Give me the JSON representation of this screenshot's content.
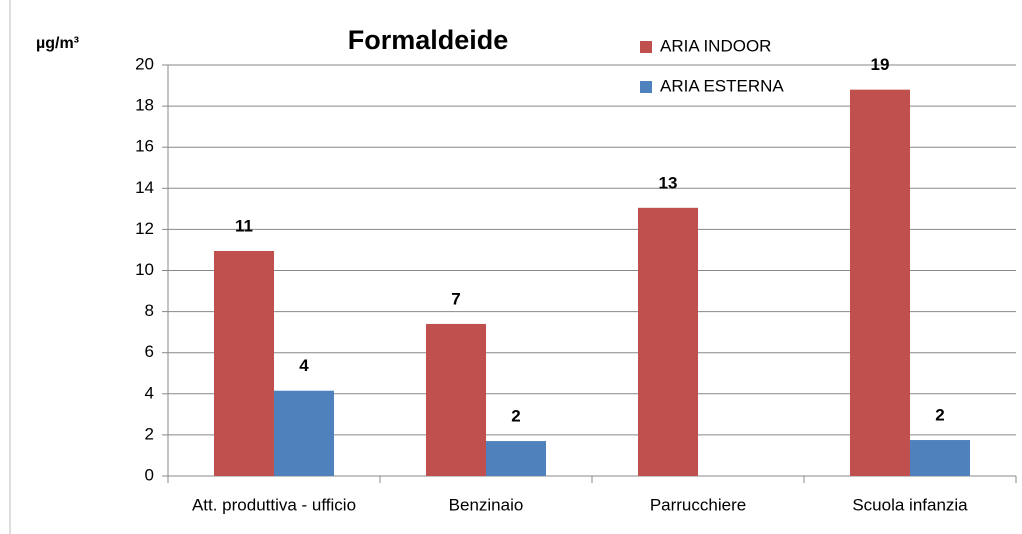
{
  "chart_data": {
    "type": "bar",
    "title": "Formaldeide",
    "y_label": "µg/m³",
    "categories": [
      "Att. produttiva - ufficio",
      "Benzinaio",
      "Parrucchiere",
      "Scuola infanzia"
    ],
    "series": [
      {
        "name": "ARIA INDOOR",
        "color": "#c0504d",
        "values": [
          10.95,
          7.4,
          13.05,
          18.8
        ],
        "value_labels": [
          "11",
          "7",
          "13",
          "19"
        ]
      },
      {
        "name": "ARIA ESTERNA",
        "color": "#4f81bd",
        "values": [
          4.15,
          1.7,
          null,
          1.75
        ],
        "value_labels": [
          "4",
          "2",
          null,
          "2"
        ]
      }
    ],
    "ylim": [
      0,
      20
    ],
    "yticks": [
      0,
      2,
      4,
      6,
      8,
      10,
      12,
      14,
      16,
      18,
      20
    ],
    "grid": true,
    "legend": "top-right"
  }
}
